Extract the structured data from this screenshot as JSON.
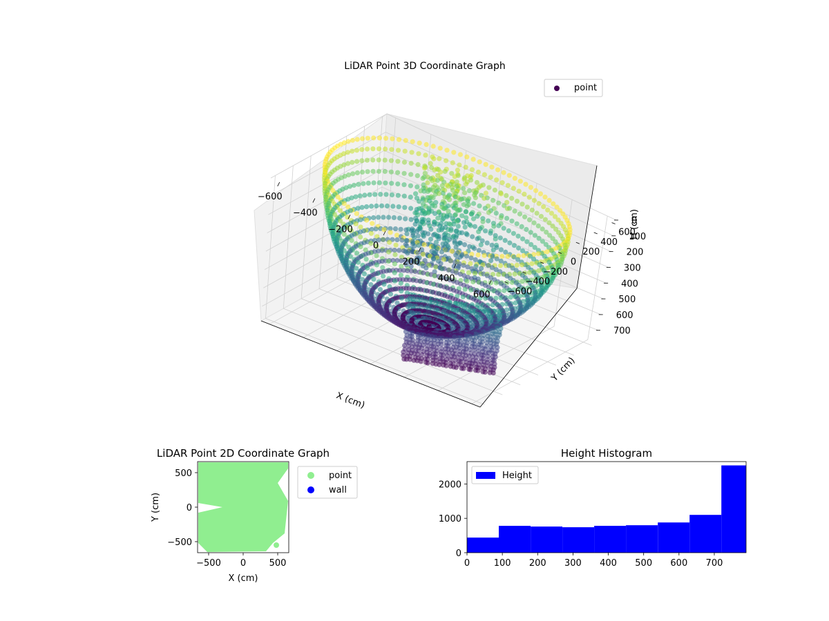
{
  "chart_data": [
    {
      "type": "scatter",
      "projection": "3d",
      "title": "LiDAR Point 3D Coordinate Graph",
      "xlabel": "X (cm)",
      "ylabel": "Y (cm)",
      "zlabel": "H (cm)",
      "xticks": [
        "−600",
        "−400",
        "−200",
        "0",
        "200",
        "400",
        "600"
      ],
      "yticks": [
        "600",
        "400",
        "200",
        "0",
        "−200",
        "−400",
        "−600"
      ],
      "zticks": [
        "0",
        "100",
        "200",
        "300",
        "400",
        "500",
        "600",
        "700"
      ],
      "xlim": [
        -650,
        650
      ],
      "ylim": [
        -650,
        650
      ],
      "zlim": [
        0,
        780
      ],
      "z_inverted": true,
      "colormap": "viridis",
      "legend": {
        "location": "upper right",
        "entries": [
          {
            "label": "point",
            "color": "#440154"
          }
        ]
      },
      "grid": true
    },
    {
      "type": "scatter",
      "title": "LiDAR Point 2D Coordinate Graph",
      "xlabel": "X (cm)",
      "ylabel": "Y (cm)",
      "xticks": [
        "−500",
        "0",
        "500"
      ],
      "yticks": [
        "500",
        "0",
        "−500"
      ],
      "xlim": [
        -660,
        660
      ],
      "ylim": [
        -660,
        660
      ],
      "legend": {
        "location": "outside right",
        "entries": [
          {
            "label": "point",
            "color": "#90ee90"
          },
          {
            "label": "wall",
            "color": "#0000ff"
          }
        ]
      },
      "grid": false
    },
    {
      "type": "bar",
      "title": "Height Histogram",
      "xticks": [
        "0",
        "100",
        "200",
        "300",
        "400",
        "500",
        "600",
        "700"
      ],
      "yticks": [
        "0",
        "1000",
        "2000"
      ],
      "xlim": [
        0,
        790
      ],
      "ylim": [
        0,
        2650
      ],
      "bin_edges": [
        0,
        90,
        180,
        270,
        360,
        450,
        540,
        630,
        720,
        790
      ],
      "values": [
        440,
        780,
        760,
        740,
        780,
        800,
        880,
        1100,
        2540
      ],
      "color": "#0000ff",
      "legend": {
        "location": "upper left",
        "entries": [
          {
            "label": "Height",
            "color": "#0000ff"
          }
        ]
      },
      "grid": false
    }
  ]
}
